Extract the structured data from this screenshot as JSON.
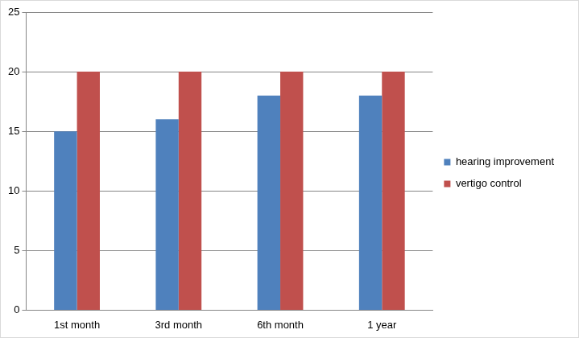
{
  "chart_data": {
    "type": "bar",
    "categories": [
      "1st month",
      "3rd month",
      "6th month",
      "1 year"
    ],
    "series": [
      {
        "name": "hearing improvement",
        "color": "#4f81bd",
        "values": [
          15,
          16,
          18,
          18
        ]
      },
      {
        "name": "vertigo control",
        "color": "#c0504d",
        "values": [
          20,
          20,
          20,
          20
        ]
      }
    ],
    "ylim": [
      0,
      25
    ],
    "yticks": [
      0,
      5,
      10,
      15,
      20,
      25
    ],
    "grid": true,
    "legend": "right"
  }
}
